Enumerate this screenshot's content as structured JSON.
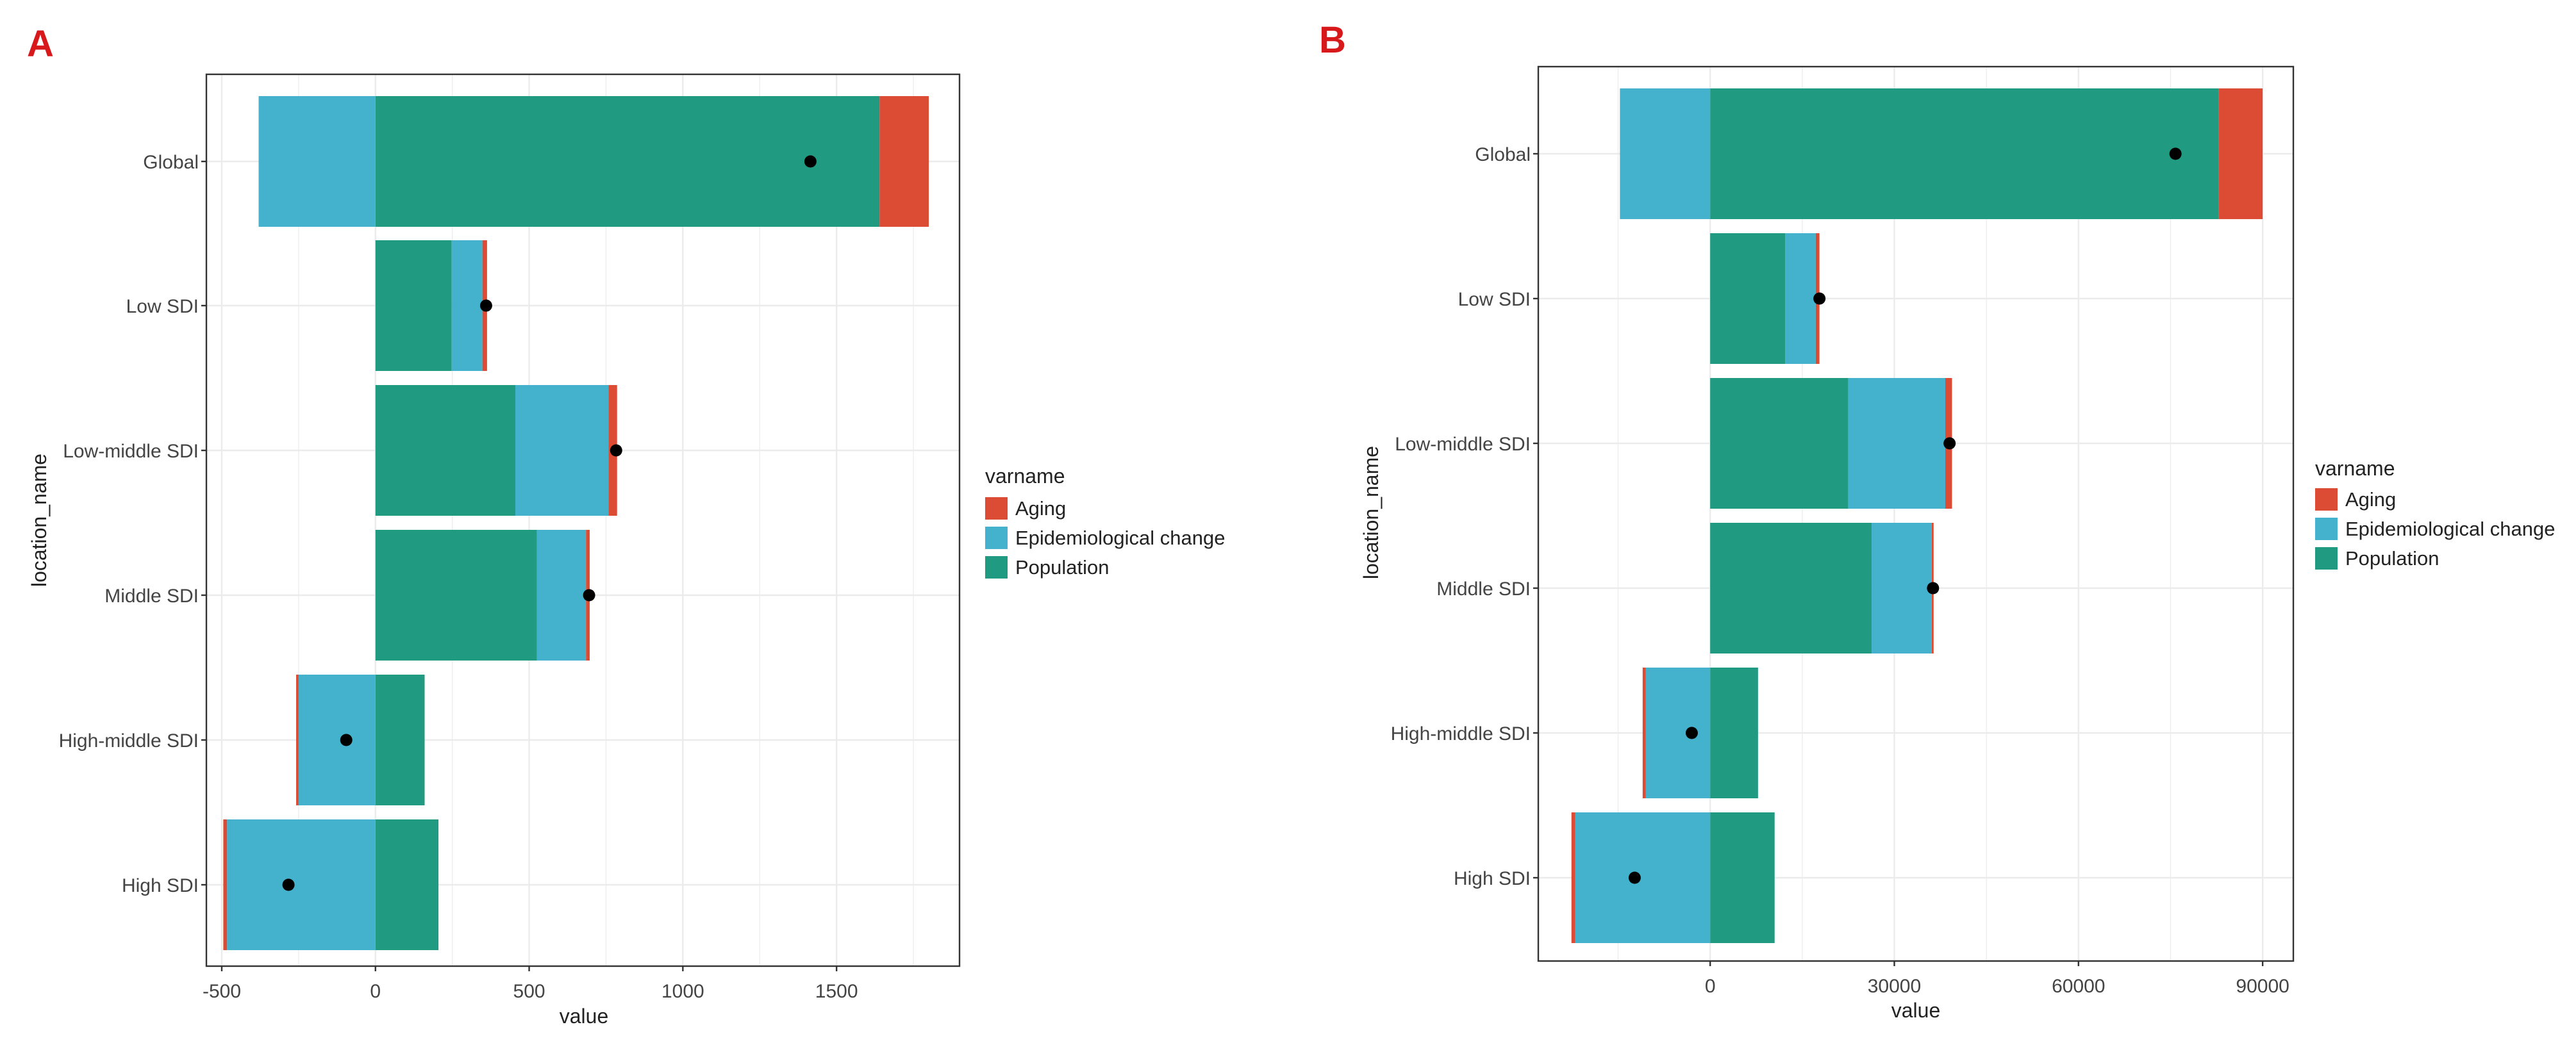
{
  "chart_data": [
    {
      "panel_label": "A",
      "type": "bar",
      "orientation": "horizontal",
      "stacked": "diverging",
      "categories": [
        "Global",
        "Low SDI",
        "Low-middle SDI",
        "Middle SDI",
        "High-middle SDI",
        "High SDI"
      ],
      "series": [
        {
          "name": "Population",
          "values": [
            1640,
            248,
            455,
            525,
            160,
            205
          ]
        },
        {
          "name": "Epidemiological change",
          "values": [
            -380,
            100,
            303,
            160,
            -250,
            -483
          ]
        },
        {
          "name": "Aging",
          "values": [
            160,
            15,
            28,
            12,
            -8,
            -12
          ]
        }
      ],
      "points": [
        1415,
        360,
        783,
        695,
        -95,
        -283
      ],
      "xlabel": "value",
      "ylabel": "location_name",
      "xlim": [
        -550,
        1900
      ],
      "xticks": [
        -500,
        0,
        500,
        1000,
        1500
      ],
      "xtick_labels": [
        "-500",
        "0",
        "500",
        "1000",
        "1500"
      ],
      "legend": {
        "title": "varname",
        "entries": [
          "Aging",
          "Epidemiological change",
          "Population"
        ],
        "position": "right"
      },
      "grid": true
    },
    {
      "panel_label": "B",
      "type": "bar",
      "orientation": "horizontal",
      "stacked": "diverging",
      "categories": [
        "Global",
        "Low SDI",
        "Low-middle SDI",
        "Middle SDI",
        "High-middle SDI",
        "High SDI"
      ],
      "series": [
        {
          "name": "Population",
          "values": [
            82800,
            12200,
            22500,
            26300,
            7800,
            10500
          ]
        },
        {
          "name": "Epidemiological change",
          "values": [
            -14700,
            5000,
            15800,
            9800,
            -10500,
            -22000
          ]
        },
        {
          "name": "Aging",
          "values": [
            7200,
            600,
            1100,
            300,
            -500,
            -600
          ]
        }
      ],
      "points": [
        75800,
        17800,
        39000,
        36300,
        -3000,
        -12300
      ],
      "xlabel": "value",
      "ylabel": "location_name",
      "xlim": [
        -28000,
        95000
      ],
      "xticks": [
        0,
        30000,
        60000,
        90000
      ],
      "xtick_labels": [
        "0",
        "30000",
        "60000",
        "90000"
      ],
      "legend": {
        "title": "varname",
        "entries": [
          "Aging",
          "Epidemiological change",
          "Population"
        ],
        "position": "right"
      },
      "grid": true
    }
  ],
  "colors": {
    "Aging": "#dc4b34",
    "Epidemiological change": "#44b2cd",
    "Population": "#209a80",
    "point": "#000000",
    "grid": "#ebebeb",
    "panel_border": "#333333",
    "panel_letter": "#d7191c"
  }
}
